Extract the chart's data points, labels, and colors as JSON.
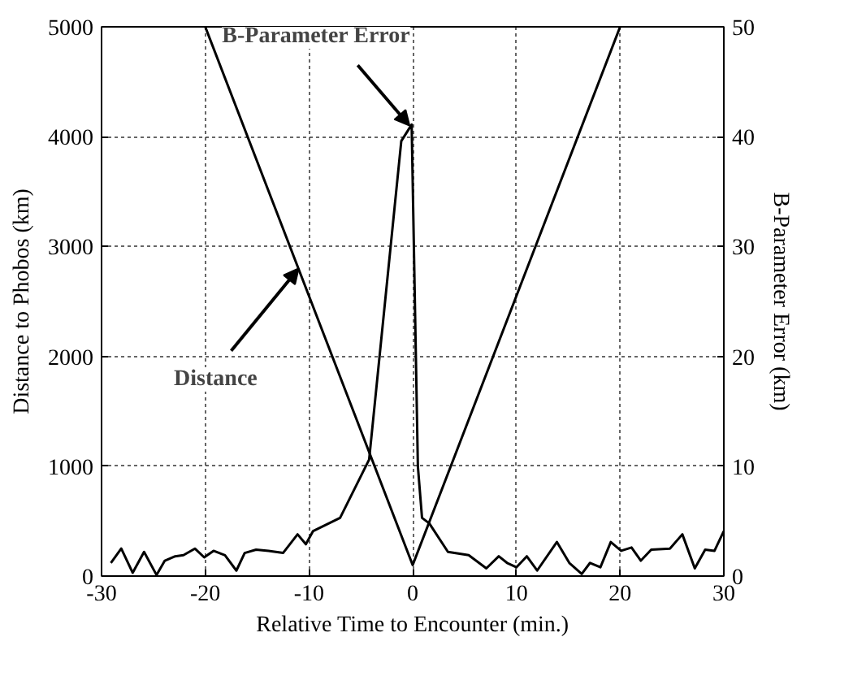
{
  "chart_data": {
    "type": "line",
    "xlabel": "Relative Time to Encounter (min.)",
    "ylabel": "Distance to Phobos (km)",
    "y2label": "B-Parameter Error (km)",
    "xlim": [
      -30,
      30
    ],
    "xticks": [
      -30,
      -20,
      -10,
      0,
      10,
      20,
      30
    ],
    "ylim": [
      0,
      5000
    ],
    "yticks": [
      0,
      1000,
      2000,
      3000,
      4000,
      5000
    ],
    "y2lim": [
      0,
      50
    ],
    "y2ticks": [
      0,
      10,
      20,
      30,
      40,
      50
    ],
    "grid": true,
    "line_style": "solid",
    "marker": "none",
    "series": [
      {
        "x": [
          -20,
          0,
          20
        ],
        "values": [
          5000,
          100,
          5000
        ],
        "color": "#000000"
      },
      {
        "axis": "y2",
        "color": "#000000",
        "x": [
          -29.1,
          -28.1,
          -27,
          -25.9,
          -24.7,
          -23.9,
          -22.9,
          -22.1,
          -21,
          -20.1,
          -19.2,
          -18.1,
          -17,
          -16.2,
          -15.1,
          -13.9,
          -12.5,
          -11.1,
          -10.3,
          -9.6,
          -7,
          -4.2,
          -1.1,
          -0.1,
          0.5,
          0.9,
          1.6,
          3.4,
          5.4,
          7.1,
          8.3,
          9.1,
          10,
          11,
          12,
          13.9,
          15.1,
          16.3,
          17.1,
          18.1,
          19.1,
          20.1,
          21.1,
          22,
          23,
          24.8,
          26,
          27.2,
          28.2,
          29.1,
          30
        ],
        "values": [
          1.2,
          2.5,
          0.3,
          2.2,
          0.1,
          1.4,
          1.8,
          1.9,
          2.5,
          1.7,
          2.3,
          1.9,
          0.5,
          2.1,
          2.4,
          2.3,
          2.1,
          3.8,
          2.9,
          4.1,
          5.3,
          10.6,
          39.6,
          41.1,
          10,
          5.3,
          4.8,
          2.2,
          1.9,
          0.7,
          1.8,
          1.2,
          0.8,
          1.8,
          0.5,
          3.1,
          1.2,
          0.2,
          1.2,
          0.8,
          3.1,
          2.3,
          2.6,
          1.4,
          2.4,
          2.5,
          3.8,
          0.7,
          2.4,
          2.3,
          4.1
        ]
      }
    ],
    "annotations": [
      {
        "text": "B-Parameter Error",
        "x": -0.3,
        "y": 4100
      },
      {
        "text": "Distance",
        "x": -11,
        "y": 2800
      }
    ]
  }
}
